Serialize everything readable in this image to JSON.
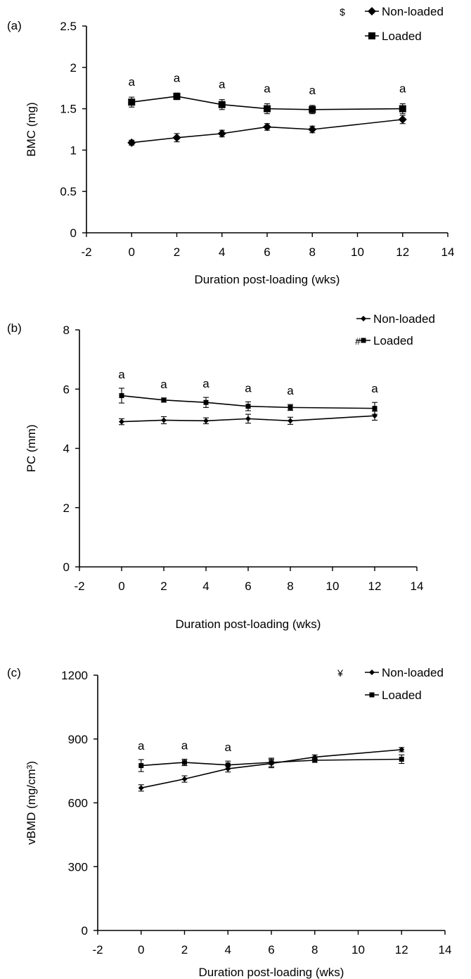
{
  "chart_data": [
    {
      "type": "line",
      "panel_label": "(a)",
      "legend_symbol": "$",
      "xlabel": "Duration post-loading (wks)",
      "ylabel": "BMC (mg)",
      "xlim": [
        -2,
        14
      ],
      "ylim": [
        0,
        2.5
      ],
      "xticks": [
        "-2",
        "0",
        "2",
        "4",
        "6",
        "8",
        "10",
        "12",
        "14"
      ],
      "yticks": [
        "0",
        "0.5",
        "1",
        "1.5",
        "2",
        "2.5"
      ],
      "marker_style": "large",
      "x": [
        0,
        2,
        4,
        6,
        8,
        12
      ],
      "series": [
        {
          "name": "Non-loaded",
          "marker": "diamond",
          "values": [
            1.09,
            1.15,
            1.2,
            1.28,
            1.25,
            1.37
          ],
          "errors": [
            0.03,
            0.05,
            0.04,
            0.04,
            0.04,
            0.05
          ]
        },
        {
          "name": "Loaded",
          "marker": "square",
          "values": [
            1.58,
            1.65,
            1.55,
            1.5,
            1.49,
            1.5
          ],
          "errors": [
            0.06,
            0.04,
            0.06,
            0.06,
            0.05,
            0.06
          ]
        }
      ],
      "annotations": [
        {
          "x": 0,
          "text": "a"
        },
        {
          "x": 2,
          "text": "a"
        },
        {
          "x": 4,
          "text": "a"
        },
        {
          "x": 6,
          "text": "a"
        },
        {
          "x": 8,
          "text": "a"
        },
        {
          "x": 12,
          "text": "a"
        }
      ]
    },
    {
      "type": "line",
      "panel_label": "(b)",
      "legend_symbol": "#",
      "xlabel": "Duration post-loading (wks)",
      "ylabel": "PC (mm)",
      "xlim": [
        -2,
        14
      ],
      "ylim": [
        0,
        8
      ],
      "xticks": [
        "-2",
        "0",
        "2",
        "4",
        "6",
        "8",
        "10",
        "12",
        "14"
      ],
      "yticks": [
        "0",
        "2",
        "4",
        "6",
        "8"
      ],
      "marker_style": "small",
      "x": [
        0,
        2,
        4,
        6,
        8,
        12
      ],
      "series": [
        {
          "name": "Non-loaded",
          "marker": "diamond",
          "values": [
            4.9,
            4.95,
            4.93,
            5.0,
            4.93,
            5.1
          ],
          "errors": [
            0.1,
            0.12,
            0.1,
            0.15,
            0.12,
            0.15
          ]
        },
        {
          "name": "Loaded",
          "marker": "square",
          "values": [
            5.78,
            5.63,
            5.55,
            5.42,
            5.38,
            5.35
          ],
          "errors": [
            0.25,
            0.07,
            0.17,
            0.15,
            0.1,
            0.2
          ]
        }
      ],
      "annotations": [
        {
          "x": 0,
          "text": "a"
        },
        {
          "x": 2,
          "text": "a"
        },
        {
          "x": 4,
          "text": "a"
        },
        {
          "x": 6,
          "text": "a"
        },
        {
          "x": 8,
          "text": "a"
        },
        {
          "x": 12,
          "text": "a"
        }
      ]
    },
    {
      "type": "line",
      "panel_label": "(c)",
      "legend_symbol": "¥",
      "xlabel": "Duration post-loading (wks)",
      "ylabel": "vBMD (mg/cm³)",
      "xlim": [
        -2,
        14
      ],
      "ylim": [
        0,
        1200
      ],
      "xticks": [
        "-2",
        "0",
        "2",
        "4",
        "6",
        "8",
        "10",
        "12",
        "14"
      ],
      "yticks": [
        "0",
        "300",
        "600",
        "900",
        "1200"
      ],
      "marker_style": "small",
      "x": [
        0,
        2,
        4,
        6,
        8,
        12
      ],
      "series": [
        {
          "name": "Non-loaded",
          "marker": "diamond",
          "values": [
            670,
            712,
            760,
            785,
            815,
            850
          ],
          "errors": [
            15,
            15,
            15,
            20,
            10,
            10
          ]
        },
        {
          "name": "Loaded",
          "marker": "square",
          "values": [
            775,
            790,
            778,
            790,
            800,
            805
          ],
          "errors": [
            28,
            15,
            18,
            20,
            10,
            20
          ]
        }
      ],
      "annotations": [
        {
          "x": 0,
          "text": "a"
        },
        {
          "x": 2,
          "text": "a"
        },
        {
          "x": 4,
          "text": "a"
        }
      ]
    }
  ]
}
